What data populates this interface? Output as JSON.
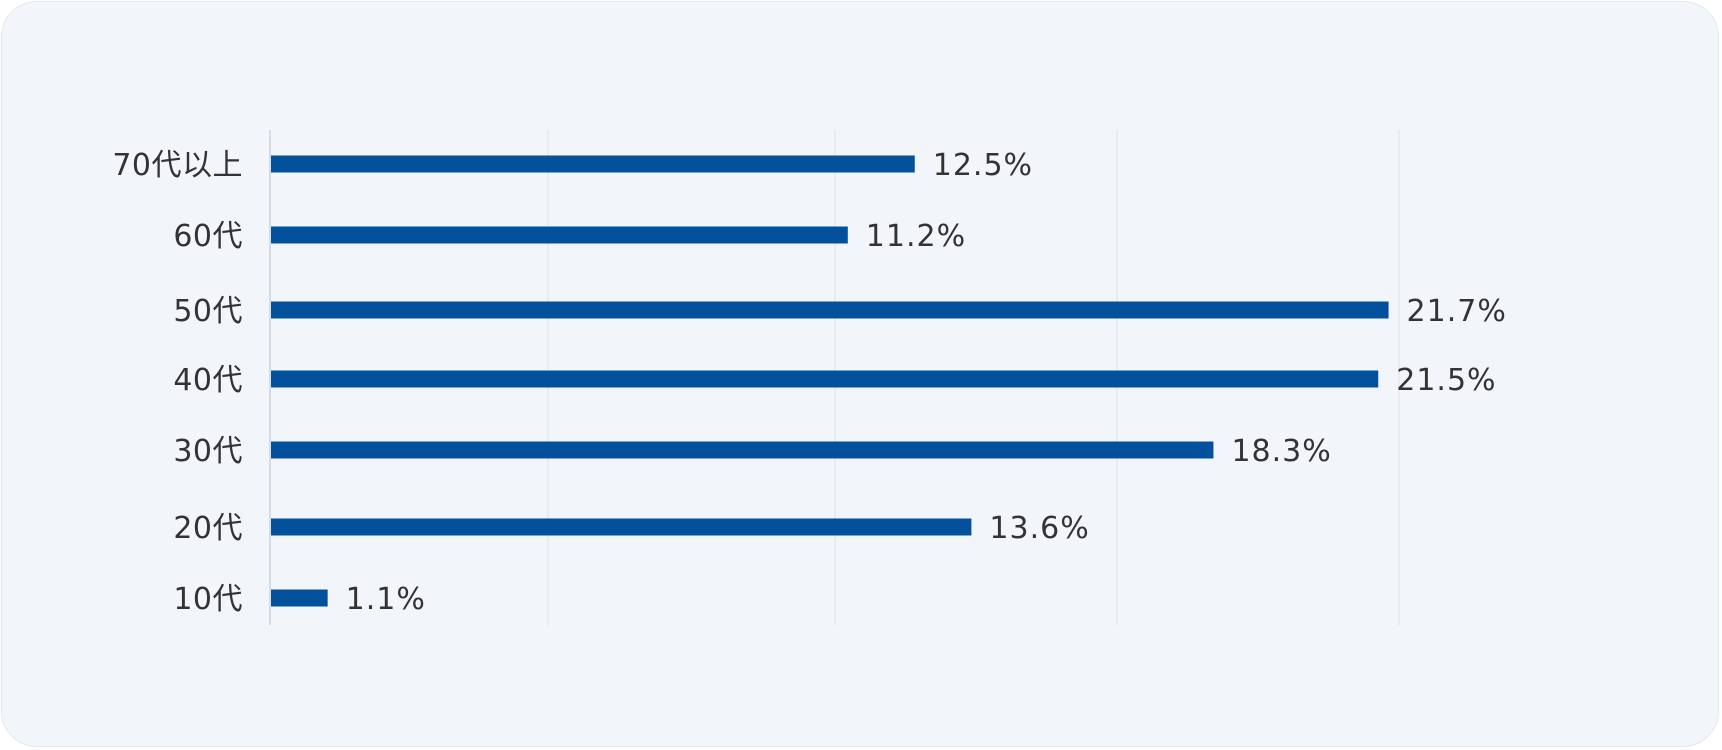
{
  "chart_data": {
    "type": "bar",
    "orientation": "horizontal",
    "categories": [
      "70代以上",
      "60代",
      "50代",
      "40代",
      "30代",
      "20代",
      "10代"
    ],
    "values": [
      12.5,
      11.2,
      21.7,
      21.5,
      18.3,
      13.6,
      1.1
    ],
    "value_labels": [
      "12.5%",
      "11.2%",
      "21.7%",
      "21.5%",
      "18.3%",
      "13.6%",
      "1.1%"
    ],
    "unit": "%",
    "title": "",
    "xlabel": "",
    "ylabel": "",
    "xlim": [
      0,
      25
    ],
    "grid": true,
    "legend": "none",
    "colors": {
      "bar": "#03519c",
      "grid": "#e3e8ee",
      "text": "#333333",
      "background": "#f2f6fa"
    }
  }
}
